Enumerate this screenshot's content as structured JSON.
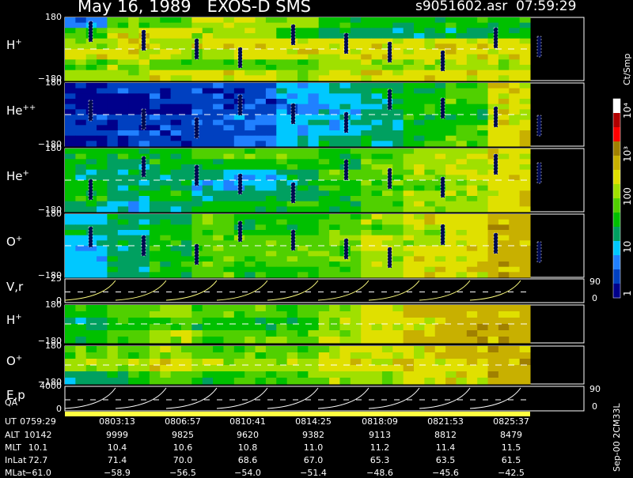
{
  "header": {
    "date": "May 16, 1989",
    "instrument": "EXOS-D SMS",
    "file": "s9051602.asr",
    "time": "07:59:29"
  },
  "panels": [
    {
      "name": "H",
      "sup": "+",
      "top_label": "180",
      "bottom_label": "−180"
    },
    {
      "name": "He",
      "sup": "++",
      "top_label": "180",
      "bottom_label": "−180"
    },
    {
      "name": "He",
      "sup": "+",
      "top_label": "180",
      "bottom_label": "−180"
    },
    {
      "name": "O",
      "sup": "+",
      "top_label": "180",
      "bottom_label": "−180"
    },
    {
      "name": "V,r",
      "sup": "",
      "top_label": "25",
      "bottom_label": "0",
      "right_top": "90",
      "right_bottom": "0"
    },
    {
      "name": "H",
      "sup": "+",
      "top_label": "180",
      "bottom_label": "−180"
    },
    {
      "name": "O",
      "sup": "+",
      "top_label": "180",
      "bottom_label": "−180"
    },
    {
      "name": "E,p",
      "sup": "",
      "top_label": "4000",
      "bottom_label": "0",
      "right_top": "90",
      "right_bottom": "0"
    }
  ],
  "qa_label": "QA",
  "colorbar": {
    "title": "Ct/Smp",
    "ticks": [
      "1",
      "10",
      "100",
      "10³",
      "10⁴"
    ],
    "colors": [
      "#00008b",
      "#0040c0",
      "#2080ff",
      "#00c8ff",
      "#00a060",
      "#00c000",
      "#50d000",
      "#a0e000",
      "#e0e000",
      "#c8b000",
      "#a08000",
      "#ff0000",
      "#b00000",
      "#ffffff"
    ]
  },
  "footer_note": "Sep-00 2CM33L",
  "ephemeris": {
    "labels": [
      "UT",
      "ALT",
      "MLT",
      "InLat",
      "MLat"
    ],
    "columns": [
      {
        "UT": "0759:29",
        "ALT": "10142",
        "MLT": "10.1",
        "InLat": "72.7",
        "MLat": "−61.0"
      },
      {
        "UT": "0803:13",
        "ALT": "9999",
        "MLT": "10.4",
        "InLat": "71.4",
        "MLat": "−58.9"
      },
      {
        "UT": "0806:57",
        "ALT": "9825",
        "MLT": "10.6",
        "InLat": "70.0",
        "MLat": "−56.5"
      },
      {
        "UT": "0810:41",
        "ALT": "9620",
        "MLT": "10.8",
        "InLat": "68.6",
        "MLat": "−54.0"
      },
      {
        "UT": "0814:25",
        "ALT": "9382",
        "MLT": "11.0",
        "InLat": "67.0",
        "MLat": "−51.4"
      },
      {
        "UT": "0818:09",
        "ALT": "9113",
        "MLT": "11.2",
        "InLat": "65.3",
        "MLat": "−48.6"
      },
      {
        "UT": "0821:53",
        "ALT": "8812",
        "MLT": "11.4",
        "InLat": "63.5",
        "MLat": "−45.6"
      },
      {
        "UT": "0825:37",
        "ALT": "8479",
        "MLT": "11.5",
        "InLat": "61.5",
        "MLat": "−42.5"
      }
    ]
  },
  "chart_data": {
    "type": "heatmap",
    "title": "May 16, 1989   EXOS-D SMS",
    "x_ticks": [
      "0759:29",
      "0803:13",
      "0806:57",
      "0810:41",
      "0814:25",
      "0818:09",
      "0821:53",
      "0825:37"
    ],
    "ylim_angle": [
      -180,
      180
    ],
    "colorbar_range": [
      1,
      10000
    ],
    "colorbar_scale": "log",
    "series": [
      {
        "name": "H+",
        "levels": [
          [
            2,
            6,
            6,
            7,
            7,
            7,
            5,
            5,
            5,
            5,
            5
          ],
          [
            6,
            8,
            8,
            7,
            7,
            5,
            4,
            4,
            4,
            4,
            5
          ],
          [
            7,
            8,
            7,
            8,
            8,
            8,
            8,
            8,
            8,
            8,
            8
          ],
          [
            8,
            8,
            8,
            7,
            8,
            8,
            8,
            8,
            8,
            8,
            8
          ],
          [
            6,
            7,
            6,
            6,
            6,
            6,
            7,
            7,
            7,
            7,
            7
          ],
          [
            7,
            7,
            8,
            8,
            8,
            7,
            8,
            8,
            8,
            8,
            8
          ]
        ]
      },
      {
        "name": "He++",
        "levels": [
          [
            0,
            1,
            1,
            1,
            1,
            3,
            4,
            4,
            5,
            6,
            8
          ],
          [
            0,
            0,
            1,
            1,
            1,
            2,
            3,
            4,
            5,
            6,
            8
          ],
          [
            0,
            0,
            0,
            1,
            1,
            2,
            3,
            4,
            5,
            5,
            8
          ],
          [
            1,
            1,
            1,
            1,
            2,
            3,
            3,
            4,
            5,
            5,
            8
          ],
          [
            1,
            1,
            1,
            1,
            1,
            3,
            3,
            4,
            5,
            6,
            8
          ],
          [
            0,
            1,
            1,
            1,
            2,
            3,
            4,
            4,
            5,
            6,
            8
          ]
        ]
      },
      {
        "name": "He+",
        "levels": [
          [
            5,
            5,
            5,
            6,
            6,
            6,
            5,
            6,
            7,
            7,
            8
          ],
          [
            5,
            4,
            5,
            5,
            5,
            5,
            5,
            6,
            7,
            7,
            8
          ],
          [
            4,
            4,
            4,
            4,
            3,
            4,
            6,
            6,
            7,
            8,
            8
          ],
          [
            5,
            4,
            4,
            3,
            3,
            4,
            5,
            6,
            6,
            7,
            8
          ],
          [
            5,
            4,
            5,
            4,
            4,
            4,
            5,
            6,
            7,
            7,
            8
          ],
          [
            4,
            3,
            4,
            5,
            5,
            5,
            5,
            6,
            7,
            7,
            8
          ]
        ]
      },
      {
        "name": "O+",
        "levels": [
          [
            3,
            4,
            4,
            6,
            5,
            5,
            6,
            7,
            8,
            8,
            9
          ],
          [
            4,
            4,
            5,
            6,
            5,
            5,
            6,
            6,
            7,
            8,
            9
          ],
          [
            3,
            4,
            5,
            6,
            6,
            6,
            6,
            7,
            7,
            8,
            9
          ],
          [
            3,
            4,
            5,
            6,
            6,
            6,
            6,
            7,
            8,
            8,
            9
          ],
          [
            3,
            4,
            5,
            6,
            6,
            6,
            6,
            7,
            8,
            8,
            9
          ],
          [
            3,
            4,
            5,
            6,
            5,
            5,
            6,
            7,
            8,
            8,
            9
          ]
        ]
      },
      {
        "name": "H+ (lower)",
        "levels": [
          [
            5,
            6,
            7,
            6,
            6,
            6,
            7,
            8,
            9,
            9,
            9
          ],
          [
            4,
            5,
            6,
            5,
            5,
            5,
            7,
            8,
            8,
            9,
            9
          ],
          [
            5,
            6,
            7,
            6,
            6,
            6,
            7,
            8,
            9,
            9,
            9
          ]
        ]
      },
      {
        "name": "O+ (lower)",
        "levels": [
          [
            6,
            6,
            7,
            6,
            6,
            6,
            7,
            8,
            8,
            9,
            9
          ],
          [
            7,
            7,
            8,
            7,
            7,
            7,
            8,
            8,
            8,
            8,
            9
          ],
          [
            4,
            5,
            6,
            5,
            6,
            6,
            7,
            7,
            8,
            8,
            9
          ]
        ]
      }
    ]
  }
}
